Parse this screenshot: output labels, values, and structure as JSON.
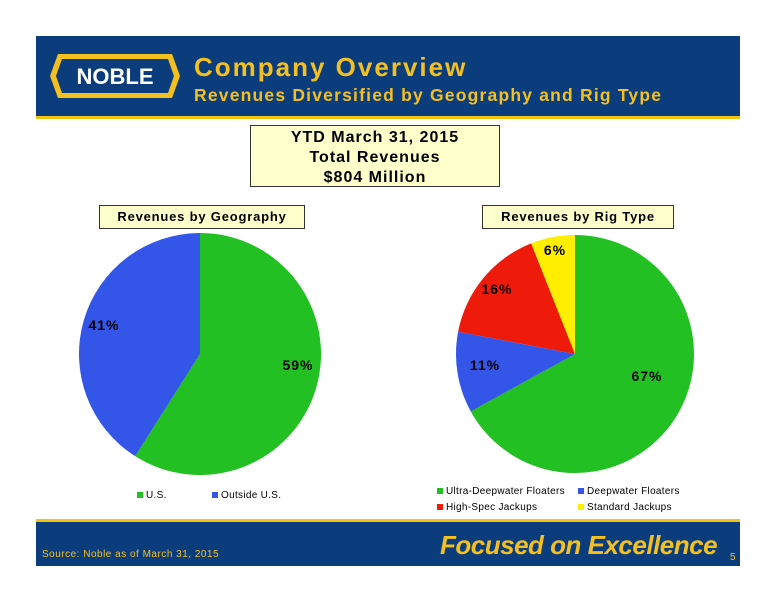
{
  "header": {
    "logo_text": "NOBLE",
    "title": "Company Overview",
    "subtitle": "Revenues Diversified by Geography and Rig Type"
  },
  "summary": {
    "line1": "YTD March 31, 2015",
    "line2": "Total Revenues",
    "line3": "$804 Million"
  },
  "colors": {
    "header_bg": "#0b3d7d",
    "accent": "#f4c020",
    "green": "#22c022",
    "blue": "#3355e8",
    "red": "#ee1a0a",
    "yellow": "#ffee00"
  },
  "chart_data": [
    {
      "type": "pie",
      "title": "Revenues by Geography",
      "categories": [
        "U.S.",
        "Outside U.S."
      ],
      "values": [
        59,
        41
      ],
      "labels": [
        "59%",
        "41%"
      ],
      "colors": [
        "#22c022",
        "#3355e8"
      ],
      "legend": "bottom"
    },
    {
      "type": "pie",
      "title": "Revenues by Rig Type",
      "categories": [
        "Ultra-Deepwater Floaters",
        "Deepwater Floaters",
        "High-Spec Jackups",
        "Standard Jackups"
      ],
      "values": [
        67,
        11,
        16,
        6
      ],
      "labels": [
        "67%",
        "11%",
        "16%",
        "6%"
      ],
      "colors": [
        "#22c022",
        "#3355e8",
        "#ee1a0a",
        "#ffee00"
      ],
      "legend": "bottom"
    }
  ],
  "footer": {
    "source": "Source: Noble as of March 31, 2015",
    "tagline": "Focused on Excellence",
    "page": "5"
  }
}
